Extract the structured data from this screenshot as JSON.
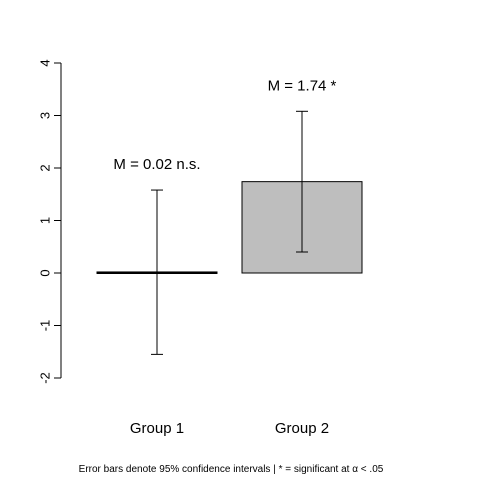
{
  "chart_data": {
    "type": "bar",
    "categories": [
      "Group 1",
      "Group 2"
    ],
    "values": [
      0.02,
      1.74
    ],
    "ci_lower": [
      -1.55,
      0.4
    ],
    "ci_upper": [
      1.58,
      3.08
    ],
    "annotations": [
      "M = 0.02  n.s.",
      "M = 1.74  *"
    ],
    "bar_colors": [
      "#ffffff",
      "#bebebe"
    ],
    "ylim": [
      -2,
      4
    ],
    "yticks": [
      "-2",
      "-1",
      "0",
      "1",
      "2",
      "3",
      "4"
    ],
    "caption": "Error bars denote 95% confidence intervals | * = significant at α < .05",
    "title": "",
    "xlabel": "",
    "ylabel": "",
    "grid": false,
    "legend": "none"
  }
}
